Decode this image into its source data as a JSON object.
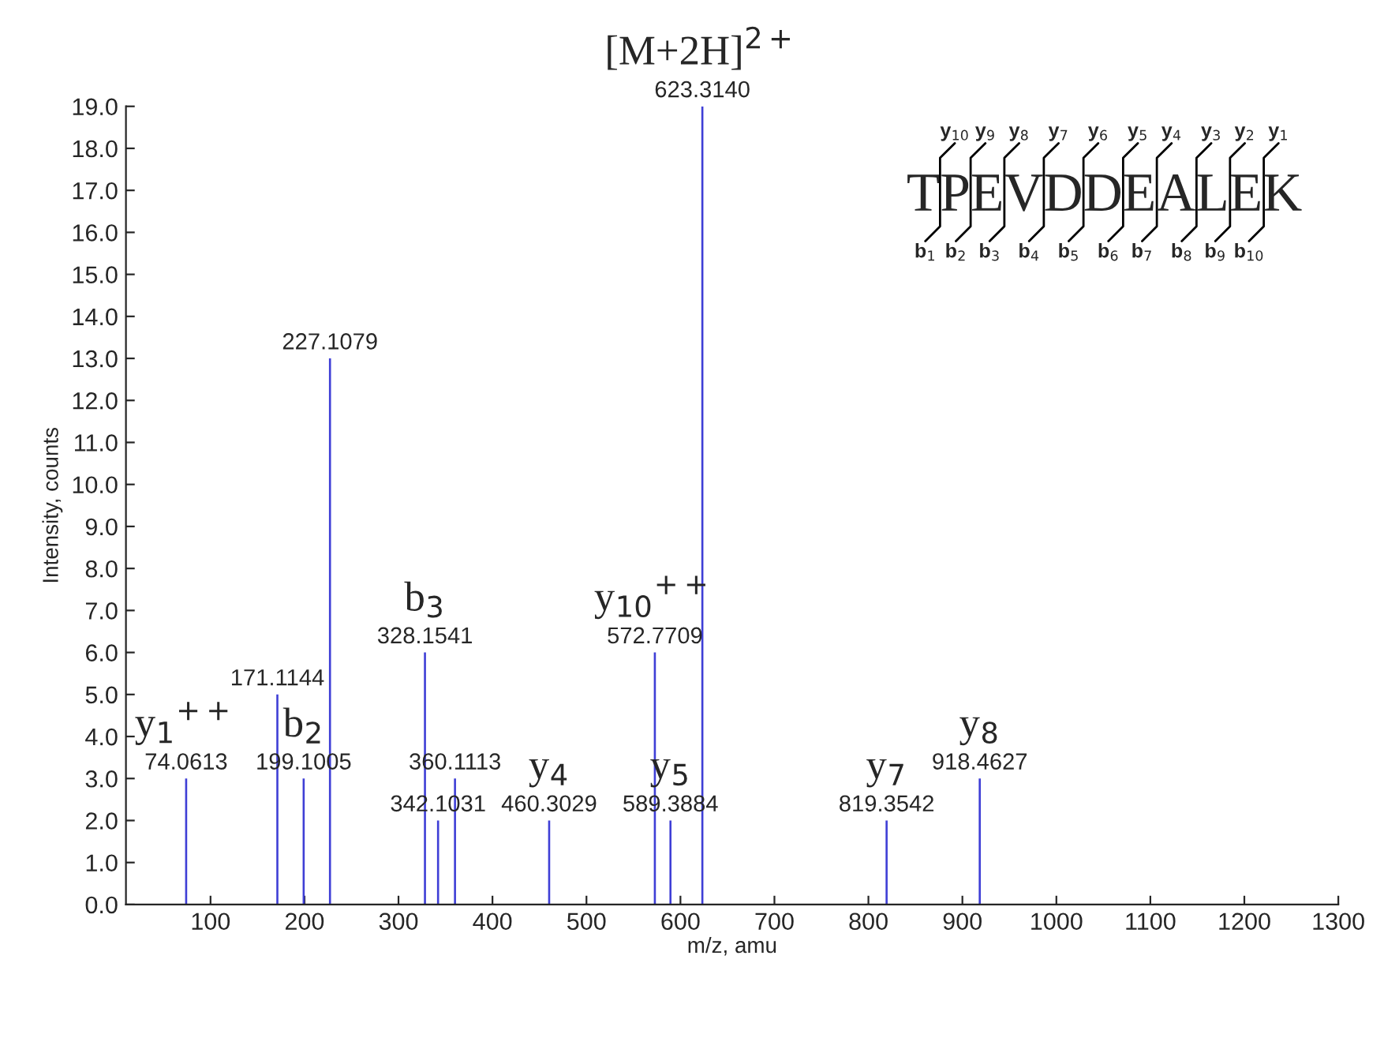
{
  "chart_data": {
    "type": "bar",
    "x": [
      74.0613,
      171.1144,
      199.1005,
      227.1079,
      328.1541,
      342.1031,
      360.1113,
      460.3029,
      572.7709,
      589.3884,
      623.314,
      819.3542,
      918.4627
    ],
    "values": [
      3,
      5,
      3,
      13,
      6,
      2,
      3,
      2,
      6,
      2,
      19,
      2,
      3
    ],
    "color": "#3f3fd6",
    "xlabel": "m/z, amu",
    "ylabel": "Intensity, counts",
    "xlim": [
      10,
      1300
    ],
    "xticks": [
      100,
      200,
      300,
      400,
      500,
      600,
      700,
      800,
      900,
      1000,
      1100,
      1200,
      1300
    ],
    "ylim": [
      0,
      19
    ],
    "yticks": [
      {
        "value": 0,
        "label": "0.0"
      },
      {
        "value": 1,
        "label": "1.0"
      },
      {
        "value": 2,
        "label": "2.0"
      },
      {
        "value": 3,
        "label": "3.0"
      },
      {
        "value": 4,
        "label": "4.0"
      },
      {
        "value": 5,
        "label": "5.0"
      },
      {
        "value": 6,
        "label": "6.0"
      },
      {
        "value": 7,
        "label": "7.0"
      },
      {
        "value": 8,
        "label": "8.0"
      },
      {
        "value": 9,
        "label": "9.0"
      },
      {
        "value": 10,
        "label": "10.0"
      },
      {
        "value": 11,
        "label": "11.0"
      },
      {
        "value": 12,
        "label": "12.0"
      },
      {
        "value": 13,
        "label": "13.0"
      },
      {
        "value": 14,
        "label": "14.0"
      },
      {
        "value": 15,
        "label": "15.0"
      },
      {
        "value": 16,
        "label": "16.0"
      },
      {
        "value": 17,
        "label": "17.0"
      },
      {
        "value": 18,
        "label": "18.0"
      },
      {
        "value": 19,
        "label": "19.0"
      }
    ],
    "grid": false,
    "legend": false,
    "annotations": [
      {
        "text": "74.0613",
        "x": 74.0613,
        "y": 3
      },
      {
        "text": "171.1144",
        "x": 171.1144,
        "y": 5
      },
      {
        "text": "199.1005",
        "x": 199.1005,
        "y": 3
      },
      {
        "text": "227.1079",
        "x": 227.1079,
        "y": 13
      },
      {
        "text": "328.1541",
        "x": 328.1541,
        "y": 6
      },
      {
        "text": "342.1031",
        "x": 342.1031,
        "y": 2
      },
      {
        "text": "360.1113",
        "x": 360.1113,
        "y": 3
      },
      {
        "text": "460.3029",
        "x": 460.3029,
        "y": 2
      },
      {
        "text": "572.7709",
        "x": 572.7709,
        "y": 6
      },
      {
        "text": "589.3884",
        "x": 589.3884,
        "y": 2
      },
      {
        "text": "623.3140",
        "x": 623.314,
        "y": 19
      },
      {
        "text": "819.3542",
        "x": 819.3542,
        "y": 2
      },
      {
        "text": "918.4627",
        "x": 918.4627,
        "y": 3
      },
      {
        "text": "y$_{1}$$^{++}$",
        "x": 74.0613,
        "y": 3
      },
      {
        "text": "b$_{2}$",
        "x": 199.1005,
        "y": 3
      },
      {
        "text": "b$_{3}$",
        "x": 328.1541,
        "y": 6
      },
      {
        "text": "y$_{4}$",
        "x": 460.3029,
        "y": 2
      },
      {
        "text": "y$_{10}$$^{++}$",
        "x": 572.7709,
        "y": 6
      },
      {
        "text": "y$_{5}$",
        "x": 589.3884,
        "y": 2
      },
      {
        "text": "[M+2H]$^{2+}$",
        "x": 623.314,
        "y": 19
      },
      {
        "text": "y$_{7}$",
        "x": 819.3542,
        "y": 2
      },
      {
        "text": "y$_{8}$",
        "x": 918.4627,
        "y": 3
      },
      "TPEVDDEALEK",
      "b$_{1}$",
      "b$_{2}$",
      "b$_{3}$",
      "b$_{4}$",
      "b$_{5}$",
      "b$_{6}$",
      "b$_{7}$",
      "b$_{8}$",
      "b$_{9}$",
      "b$_{10}$",
      "y$_{10}$",
      "y$_{9}$",
      "y$_{8}$",
      "y$_{7}$",
      "y$_{6}$",
      "y$_{5}$",
      "y$_{4}$",
      "y$_{3}$",
      "y$_{2}$",
      "y$_{1}$"
    ]
  }
}
